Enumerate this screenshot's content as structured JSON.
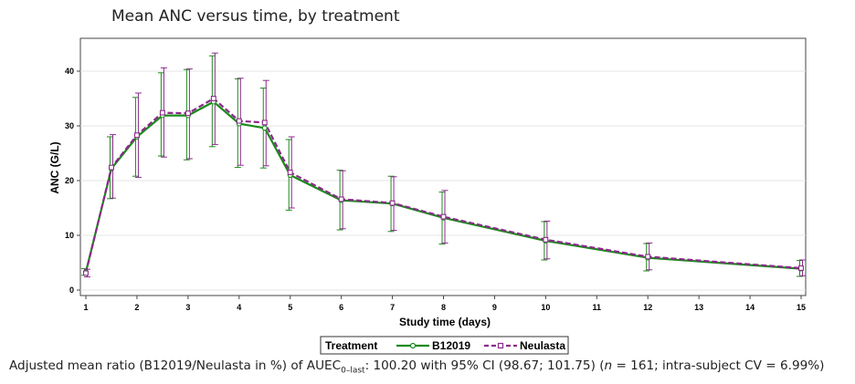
{
  "chart_data": {
    "type": "line",
    "title": "Mean ANC versus time, by treatment",
    "xlabel": "Study time (days)",
    "ylabel": "ANC (G/L)",
    "xlim": [
      1,
      15
    ],
    "ylim": [
      -1,
      46
    ],
    "xticks": [
      1,
      2,
      3,
      4,
      5,
      6,
      7,
      8,
      9,
      10,
      11,
      12,
      13,
      14,
      15
    ],
    "yticks": [
      0,
      10,
      20,
      30,
      40
    ],
    "grid": "horizontal",
    "legend": {
      "placement": "bottom-center",
      "title": "Treatment"
    },
    "series": [
      {
        "name": "B12019",
        "color": "#1a8a1a",
        "line_style": "solid",
        "points": [
          {
            "x": 1,
            "y": 3.3,
            "lo": 2.7,
            "hi": 3.9
          },
          {
            "x": 1.5,
            "y": 22.2,
            "lo": 16.7,
            "hi": 28.0
          },
          {
            "x": 2,
            "y": 28.0,
            "lo": 20.8,
            "hi": 35.2
          },
          {
            "x": 2.5,
            "y": 31.9,
            "lo": 24.5,
            "hi": 39.7
          },
          {
            "x": 3,
            "y": 31.9,
            "lo": 23.8,
            "hi": 40.3
          },
          {
            "x": 3.5,
            "y": 34.4,
            "lo": 26.2,
            "hi": 42.8
          },
          {
            "x": 4,
            "y": 30.4,
            "lo": 22.4,
            "hi": 38.6
          },
          {
            "x": 4.5,
            "y": 29.6,
            "lo": 22.3,
            "hi": 36.9
          },
          {
            "x": 5,
            "y": 21.0,
            "lo": 14.6,
            "hi": 27.5
          },
          {
            "x": 6,
            "y": 16.4,
            "lo": 11.0,
            "hi": 21.9
          },
          {
            "x": 7,
            "y": 15.8,
            "lo": 10.7,
            "hi": 20.8
          },
          {
            "x": 8,
            "y": 13.2,
            "lo": 8.4,
            "hi": 17.9
          },
          {
            "x": 10,
            "y": 9.0,
            "lo": 5.5,
            "hi": 12.5
          },
          {
            "x": 12,
            "y": 5.9,
            "lo": 3.5,
            "hi": 8.5
          },
          {
            "x": 15,
            "y": 3.9,
            "lo": 2.5,
            "hi": 5.4
          }
        ]
      },
      {
        "name": "Neulasta",
        "color": "#8b2a8b",
        "line_style": "dashed",
        "points": [
          {
            "x": 1,
            "y": 3.1,
            "lo": 2.4,
            "hi": 3.8
          },
          {
            "x": 1.5,
            "y": 22.4,
            "lo": 16.8,
            "hi": 28.4
          },
          {
            "x": 2,
            "y": 28.3,
            "lo": 20.6,
            "hi": 36.0
          },
          {
            "x": 2.5,
            "y": 32.4,
            "lo": 24.3,
            "hi": 40.6
          },
          {
            "x": 3,
            "y": 32.3,
            "lo": 24.0,
            "hi": 40.4
          },
          {
            "x": 3.5,
            "y": 35.0,
            "lo": 26.6,
            "hi": 43.3
          },
          {
            "x": 4,
            "y": 30.9,
            "lo": 22.8,
            "hi": 38.7
          },
          {
            "x": 4.5,
            "y": 30.6,
            "lo": 22.7,
            "hi": 38.3
          },
          {
            "x": 5,
            "y": 21.5,
            "lo": 15.0,
            "hi": 28.0
          },
          {
            "x": 6,
            "y": 16.6,
            "lo": 11.2,
            "hi": 21.8
          },
          {
            "x": 7,
            "y": 15.9,
            "lo": 10.9,
            "hi": 20.7
          },
          {
            "x": 8,
            "y": 13.4,
            "lo": 8.6,
            "hi": 18.2
          },
          {
            "x": 10,
            "y": 9.2,
            "lo": 5.7,
            "hi": 12.6
          },
          {
            "x": 12,
            "y": 6.1,
            "lo": 3.7,
            "hi": 8.6
          },
          {
            "x": 15,
            "y": 4.0,
            "lo": 2.6,
            "hi": 5.5
          }
        ]
      }
    ]
  },
  "footnote": {
    "prefix": "Adjusted mean ratio (B12019/Neulasta in %) of AUEC",
    "sub": "0–last",
    "after_sub": ": 100.20 with 95% CI (98.67; 101.75) (",
    "n_var": "n",
    "after_n": " = 161; intra-subject CV = 6.99%)"
  }
}
